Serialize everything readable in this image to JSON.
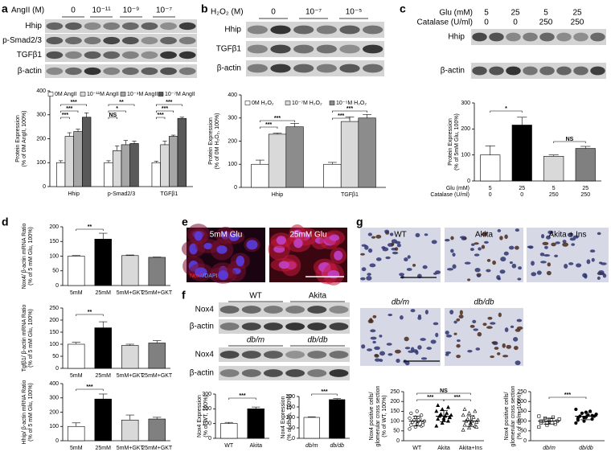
{
  "panel_letters": [
    "a",
    "b",
    "c",
    "d",
    "e",
    "f",
    "g"
  ],
  "blots": [
    {
      "header": "AngII (M)",
      "lanes": [
        "0",
        "10⁻¹¹",
        "10⁻⁹",
        "10⁻⁷"
      ],
      "rows": [
        "Hhip",
        "p-Smad2/3",
        "TGFβ1",
        "β-actin"
      ]
    },
    {
      "header": "H₂O₂ (M)",
      "lanes": [
        "0",
        "10⁻⁷",
        "10⁻⁵"
      ],
      "rows": [
        "Hhip",
        "TGFβ1",
        "β-actin"
      ]
    },
    {
      "header_rows": [
        {
          "label": "Glu (mM)",
          "lanes": [
            "5",
            "25",
            "5",
            "25"
          ]
        },
        {
          "label": "Catalase (U/ml)",
          "lanes": [
            "0",
            "0",
            "250",
            "250"
          ]
        }
      ],
      "rows": [
        "Hhip",
        "β-actin"
      ]
    },
    {
      "groups": [
        "WT",
        "Akita"
      ],
      "rows": [
        "Nox4",
        "β-actin"
      ]
    },
    {
      "groups": [
        "db/m",
        "db/db"
      ],
      "rows": [
        "Nox4",
        "β-actin"
      ]
    }
  ],
  "cell_images": {
    "labels": [
      "5mM Glu",
      "25mM Glu"
    ],
    "stain": [
      "Nox4",
      "/DAPI"
    ]
  },
  "tissue_images": {
    "labels": [
      "WT",
      "Akita",
      "Akita + Ins",
      "db/m",
      "db/db"
    ]
  },
  "chart_data": [
    {
      "type": "bar",
      "ylabel": [
        "Protein Expression",
        "(% of 0M AngII, 100%)"
      ],
      "categories": [
        "Hhip",
        "p-Smad2/3",
        "TGFβ1"
      ],
      "series": [
        {
          "name": "0M AngII",
          "color": "#ffffff",
          "values": [
            100,
            100,
            100
          ],
          "errors": [
            8,
            8,
            6
          ]
        },
        {
          "name": "10⁻¹¹M AngII",
          "color": "#d9d9d9",
          "values": [
            210,
            150,
            175
          ],
          "errors": [
            15,
            20,
            15
          ]
        },
        {
          "name": "10⁻⁹M AngII",
          "color": "#a6a6a6",
          "values": [
            230,
            175,
            210
          ],
          "errors": [
            10,
            18,
            5
          ]
        },
        {
          "name": "10⁻⁷M AngII",
          "color": "#595959",
          "values": [
            290,
            180,
            285
          ],
          "errors": [
            18,
            10,
            5
          ]
        }
      ],
      "ylim": [
        0,
        400
      ],
      "yticks": [
        0,
        100,
        200,
        300,
        400
      ],
      "annotations": [
        "***",
        "***",
        "***",
        "**",
        "*",
        "NS",
        "***",
        "***",
        "***"
      ]
    },
    {
      "type": "bar",
      "ylabel": [
        "Protein Expression",
        "(% of 0M H₂O₂, 100%)"
      ],
      "categories": [
        "Hhip",
        "TGFβ1"
      ],
      "series": [
        {
          "name": "0M H₂O₂",
          "color": "#ffffff",
          "values": [
            100,
            100
          ],
          "errors": [
            18,
            8
          ]
        },
        {
          "name": "10⁻⁷M H₂O₂",
          "color": "#d9d9d9",
          "values": [
            230,
            285
          ],
          "errors": [
            5,
            20
          ]
        },
        {
          "name": "10⁻⁵M H₂O₂",
          "color": "#8c8c8c",
          "values": [
            262,
            300
          ],
          "errors": [
            15,
            15
          ]
        }
      ],
      "ylim": [
        0,
        400
      ],
      "yticks": [
        0,
        100,
        200,
        300,
        400
      ],
      "annotations": [
        "***",
        "***",
        "***",
        "***"
      ]
    },
    {
      "type": "bar",
      "ylabel": [
        "Protein Expression",
        "(% of 5mM Glu, 100%)"
      ],
      "x_table": {
        "rows": [
          {
            "label": "Glu (mM)",
            "values": [
              "5",
              "25",
              "5",
              "25"
            ]
          },
          {
            "label": "Catalase (U/ml)",
            "values": [
              "0",
              "0",
              "250",
              "250"
            ]
          }
        ]
      },
      "values": [
        100,
        215,
        95,
        125
      ],
      "errors": [
        35,
        30,
        5,
        8
      ],
      "colors": [
        "#ffffff",
        "#000000",
        "#d9d9d9",
        "#808080"
      ],
      "ylim": [
        0,
        300
      ],
      "yticks": [
        0,
        100,
        200,
        300
      ],
      "annotations": [
        "*",
        "NS"
      ]
    },
    {
      "type": "bar",
      "ylabel": [
        "Nox4/ β-actin mRNA Ratio",
        "(% of 5 mM Glu, 100%)"
      ],
      "categories": [
        "5mM",
        "25mM",
        "5mM+GKT",
        "25mM+GKT"
      ],
      "values": [
        100,
        158,
        102,
        96
      ],
      "errors": [
        2,
        20,
        2,
        1
      ],
      "colors": [
        "#ffffff",
        "#000000",
        "#d9d9d9",
        "#808080"
      ],
      "ylim": [
        0,
        200
      ],
      "yticks": [
        0,
        50,
        100,
        150,
        200
      ],
      "annotations": [
        "**"
      ]
    },
    {
      "type": "bar",
      "ylabel": [
        "Tgfβ1/ β-actin mRNA Ratio",
        "(% of 5 mM Glu, 100%)"
      ],
      "categories": [
        "5mM",
        "25mM",
        "5mM+GKT",
        "25mM+GKT"
      ],
      "values": [
        100,
        168,
        95,
        105
      ],
      "errors": [
        8,
        25,
        5,
        10
      ],
      "colors": [
        "#ffffff",
        "#000000",
        "#d9d9d9",
        "#808080"
      ],
      "ylim": [
        0,
        250
      ],
      "yticks": [
        0,
        50,
        100,
        150,
        200,
        250
      ],
      "annotations": [
        "**"
      ]
    },
    {
      "type": "bar",
      "ylabel": [
        "Hhip/ β-actin mRNA Ratio",
        "(% of 5 mM Glu, 100%)"
      ],
      "categories": [
        "5mM",
        "25mM",
        "5mM+GKT",
        "25mM+GKT"
      ],
      "values": [
        100,
        292,
        145,
        152
      ],
      "errors": [
        25,
        35,
        35,
        12
      ],
      "colors": [
        "#ffffff",
        "#000000",
        "#d9d9d9",
        "#808080"
      ],
      "ylim": [
        0,
        400
      ],
      "yticks": [
        0,
        100,
        200,
        300,
        400
      ],
      "annotations": [
        "***"
      ]
    },
    {
      "type": "bar",
      "ylabel": [
        "Nox4 Expression",
        "(% of WT, 100%)"
      ],
      "categories": [
        "WT",
        "Akita"
      ],
      "values": [
        100,
        200
      ],
      "errors": [
        8,
        12
      ],
      "colors": [
        "#ffffff",
        "#000000"
      ],
      "ylim": [
        0,
        300
      ],
      "yticks": [
        0,
        100,
        200,
        300
      ],
      "annotations": [
        "***"
      ]
    },
    {
      "type": "bar",
      "ylabel": [
        "Nox4 Expression",
        "(% of db/m, 100%)"
      ],
      "categories": [
        "db/m",
        "db/db"
      ],
      "values": [
        100,
        185
      ],
      "errors": [
        3,
        5
      ],
      "colors": [
        "#ffffff",
        "#000000"
      ],
      "ylim": [
        0,
        200
      ],
      "yticks": [
        0,
        50,
        100,
        150,
        200
      ],
      "annotations": [
        "***"
      ]
    },
    {
      "type": "dot",
      "ylabel": [
        "Nox4 positive cells/",
        "glomerular cross section",
        "(% of WT, 100%)"
      ],
      "categories": [
        "WT",
        "Akita",
        "Akita+Ins"
      ],
      "values": [
        [
          60,
          70,
          75,
          80,
          85,
          90,
          95,
          100,
          100,
          105,
          110,
          115,
          120,
          130,
          140,
          150,
          80,
          95,
          105
        ],
        [
          75,
          90,
          100,
          110,
          115,
          120,
          125,
          125,
          130,
          135,
          140,
          150,
          160,
          170,
          180,
          105,
          118
        ],
        [
          55,
          65,
          75,
          80,
          90,
          95,
          100,
          100,
          105,
          110,
          120,
          130,
          140,
          150,
          160,
          85,
          70
        ]
      ],
      "means": [
        100,
        125,
        100
      ],
      "errors": [
        25,
        28,
        27
      ],
      "markers": [
        "open-circle",
        "filled-triangle",
        "open-triangle"
      ],
      "ylim": [
        0,
        250
      ],
      "yticks": [
        0,
        50,
        100,
        150,
        200,
        250
      ],
      "annotations": [
        "NS",
        "***",
        "***"
      ]
    },
    {
      "type": "dot",
      "ylabel": [
        "Nox4 positive cells/",
        "glomerular cross section",
        "(% of db/m, 100%)"
      ],
      "categories": [
        "db/m",
        "db/db"
      ],
      "values": [
        [
          70,
          80,
          85,
          90,
          95,
          100,
          100,
          105,
          110,
          115,
          120,
          125,
          90,
          95,
          100,
          108
        ],
        [
          90,
          100,
          110,
          115,
          120,
          125,
          125,
          130,
          135,
          140,
          150,
          160,
          118,
          128,
          105,
          145
        ]
      ],
      "means": [
        100,
        125
      ],
      "errors": [
        15,
        18
      ],
      "markers": [
        "open-square",
        "filled-circle"
      ],
      "ylim": [
        0,
        250
      ],
      "yticks": [
        0,
        50,
        100,
        150,
        200,
        250
      ],
      "annotations": [
        "***"
      ]
    }
  ]
}
